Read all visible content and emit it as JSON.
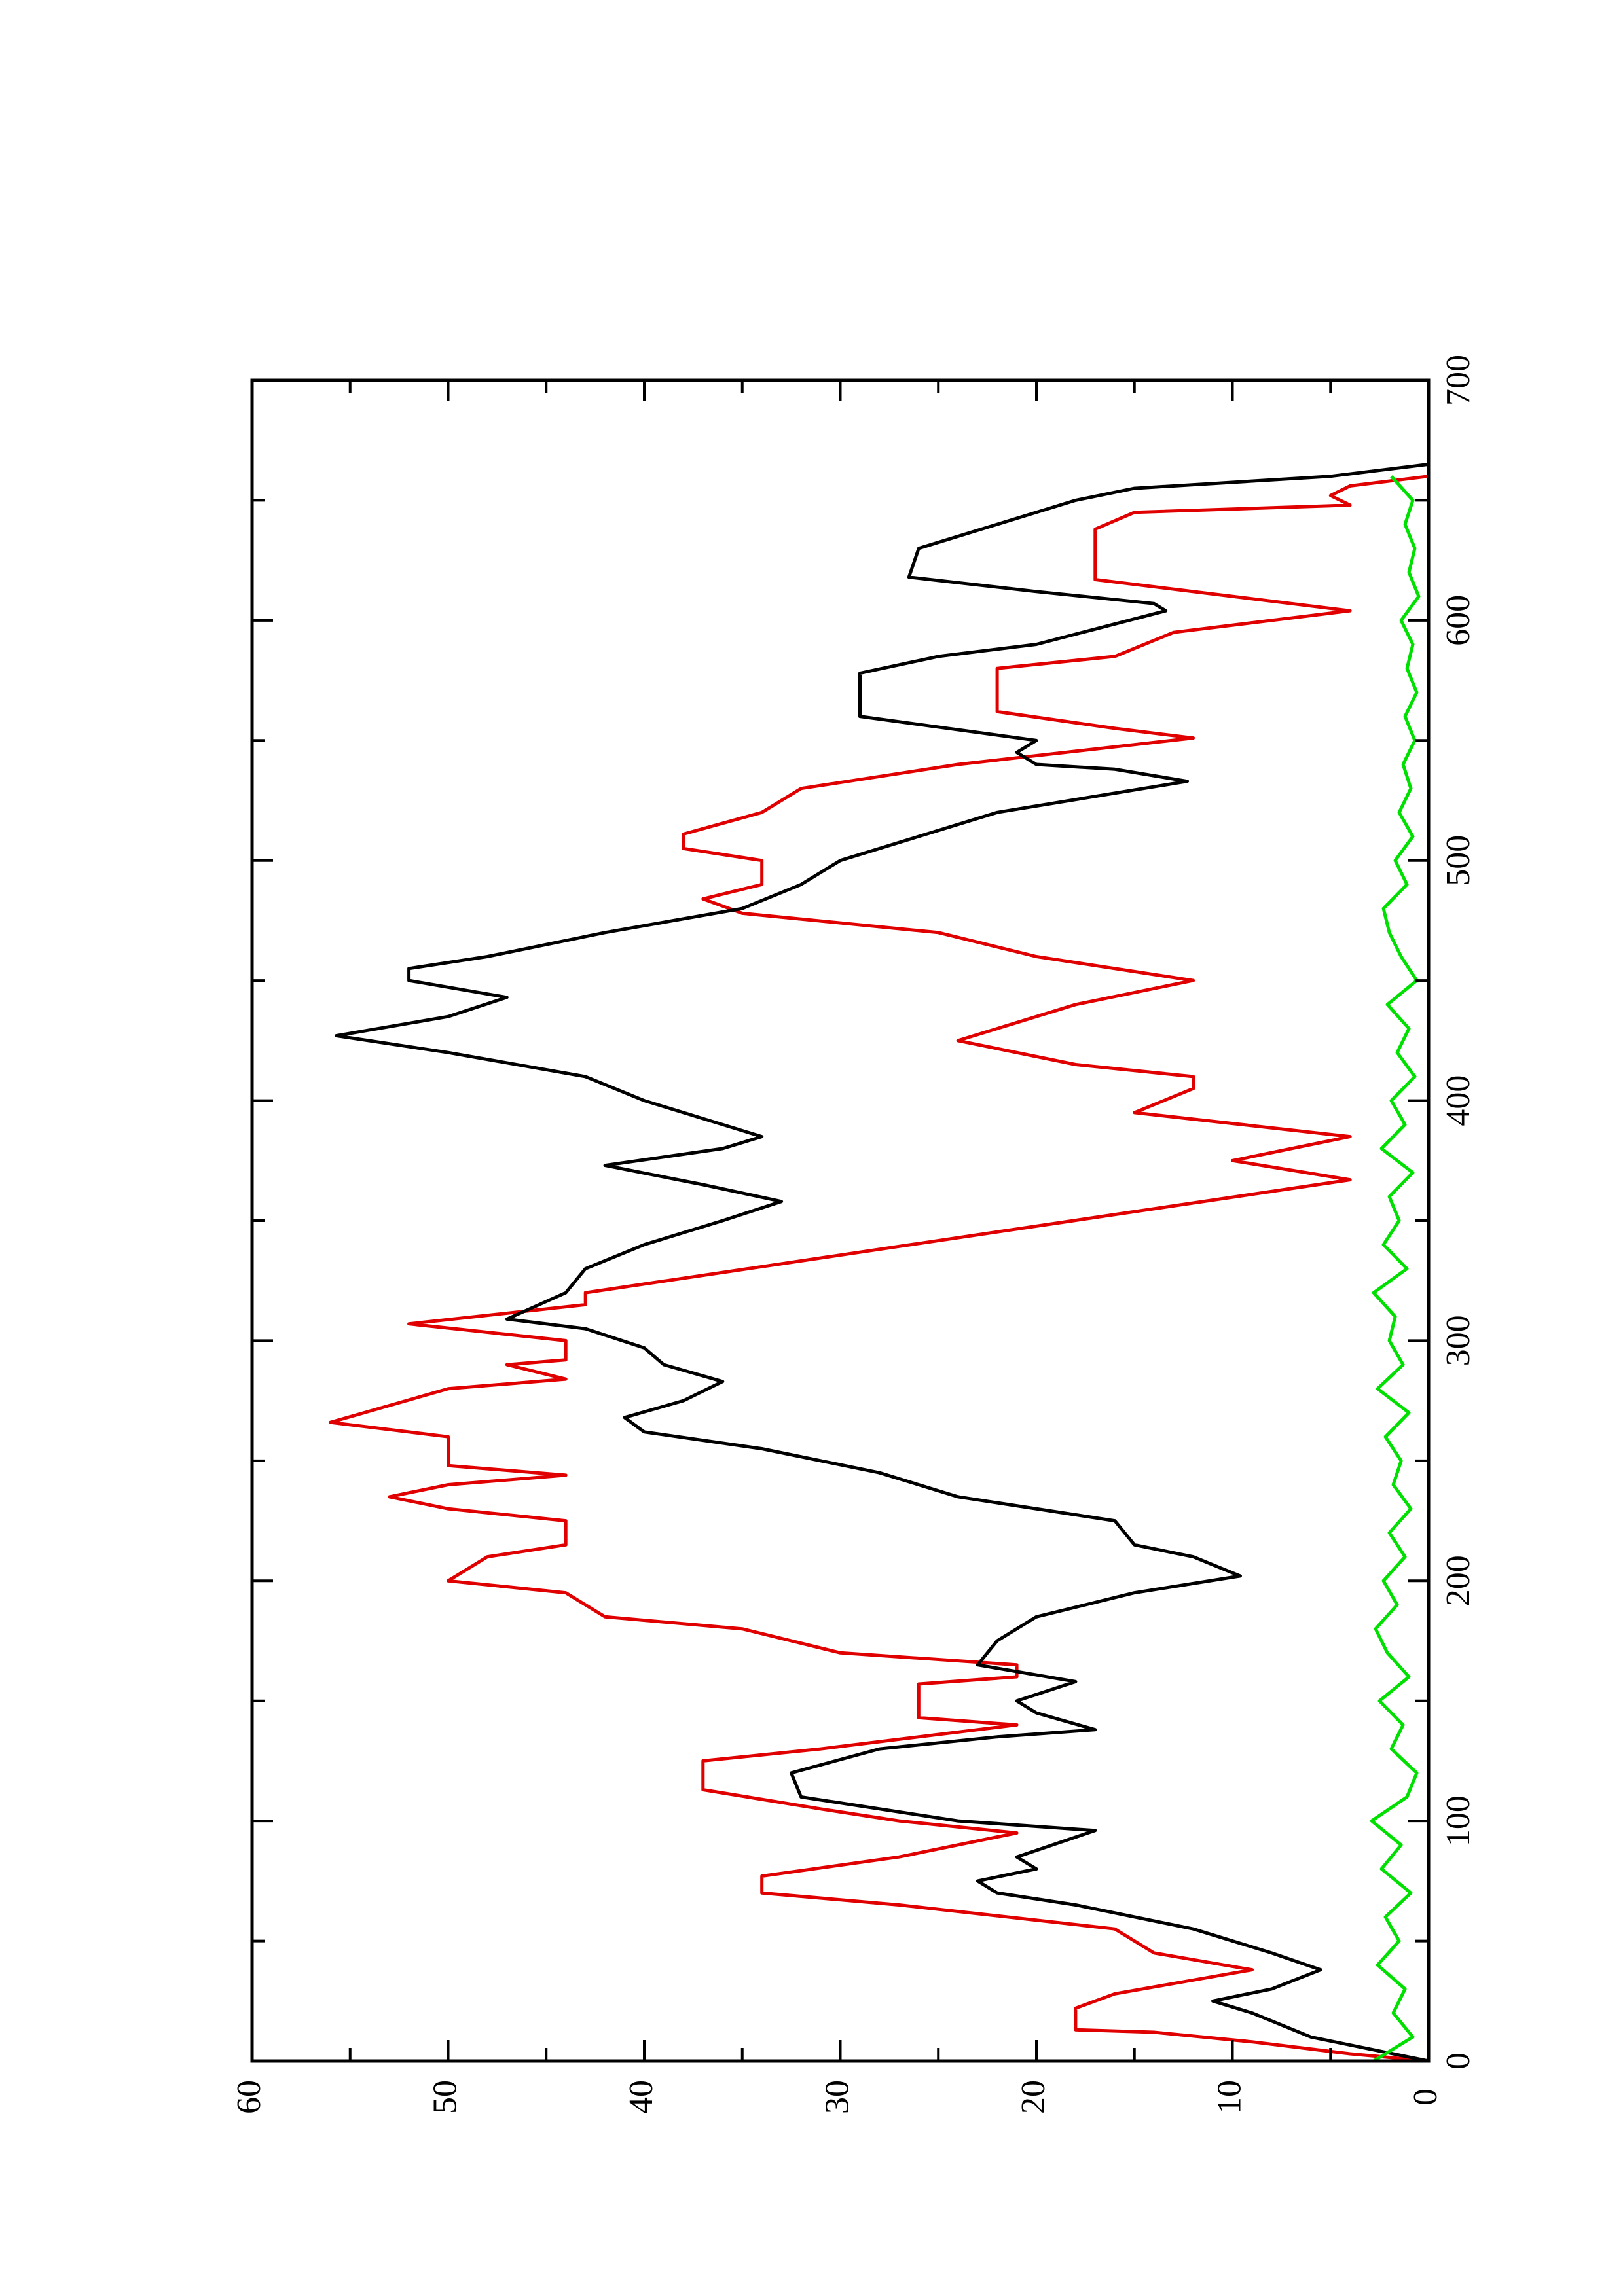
{
  "chart_data": {
    "type": "line",
    "xlim": [
      0,
      700
    ],
    "xticks": [
      0,
      100,
      200,
      300,
      400,
      500,
      600,
      700
    ],
    "xminorticks": [
      50,
      150,
      250,
      350,
      450,
      550,
      650
    ],
    "ylim": [
      0,
      60
    ],
    "yticks": [
      0,
      10,
      20,
      30,
      40,
      50,
      60
    ],
    "yminorticks": [
      5,
      15,
      25,
      35,
      45,
      55
    ],
    "series": [
      {
        "color": "#e00000",
        "x": [
          0,
          3,
          8,
          12,
          13,
          22,
          28,
          38,
          45,
          55,
          65,
          70,
          77,
          85,
          95,
          100,
          105,
          113,
          125,
          130,
          140,
          143,
          149,
          157,
          160,
          165,
          170,
          180,
          185,
          195,
          200,
          210,
          215,
          225,
          230,
          235,
          240,
          244,
          248,
          252,
          260,
          266,
          280,
          284,
          290,
          292,
          300,
          307,
          315,
          320,
          367,
          375,
          385,
          395,
          405,
          410,
          415,
          425,
          440,
          450,
          460,
          470,
          478,
          484,
          490,
          500,
          505,
          511,
          520,
          530,
          540,
          551,
          555,
          562,
          580,
          585,
          595,
          604,
          607,
          617,
          638,
          645,
          648,
          652,
          656,
          660
        ],
        "values": [
          0,
          4,
          9,
          14,
          18,
          18,
          16,
          9,
          14,
          16,
          27,
          34,
          34,
          27,
          21,
          27,
          31,
          37,
          37,
          31,
          21,
          26,
          26,
          26,
          21,
          21,
          30,
          35,
          42,
          44,
          50,
          48,
          44,
          44,
          50,
          53,
          50,
          44,
          50,
          50,
          50,
          56,
          50,
          44,
          47,
          44,
          44,
          52,
          43,
          43,
          4,
          10,
          4,
          15,
          12,
          12,
          18,
          24,
          18,
          12,
          20,
          25,
          35,
          37,
          34,
          34,
          38,
          38,
          34,
          32,
          24,
          12,
          16,
          22,
          22,
          16,
          13,
          4,
          7,
          17,
          17,
          15,
          4,
          5,
          4,
          0
        ]
      },
      {
        "color": "#000000",
        "x": [
          0,
          5,
          10,
          20,
          25,
          30,
          38,
          45,
          55,
          65,
          70,
          75,
          80,
          85,
          96,
          100,
          110,
          120,
          130,
          135,
          138,
          145,
          150,
          158,
          165,
          175,
          185,
          195,
          202,
          210,
          215,
          225,
          235,
          245,
          255,
          262,
          268,
          275,
          283,
          290,
          297,
          305,
          309,
          320,
          330,
          340,
          350,
          358,
          365,
          373,
          380,
          385,
          395,
          400,
          410,
          420,
          427,
          435,
          443,
          450,
          455,
          460,
          470,
          480,
          490,
          500,
          510,
          520,
          533,
          538,
          540,
          545,
          550,
          560,
          570,
          578,
          585,
          590,
          604,
          607,
          612,
          618,
          630,
          640,
          650,
          655,
          660,
          665
        ],
        "values": [
          0,
          3,
          6,
          9,
          11,
          8,
          5.5,
          8,
          12,
          18,
          22,
          23,
          20,
          21,
          17,
          24,
          32,
          32.5,
          28,
          22,
          17,
          20,
          21,
          18,
          23,
          22,
          20,
          15,
          9.6,
          12,
          15,
          16,
          24,
          28,
          34,
          40,
          41,
          38,
          36,
          39,
          40,
          43,
          47,
          44,
          43,
          40,
          36,
          33,
          37,
          42,
          36,
          34,
          38,
          40,
          43,
          50,
          55.7,
          50,
          47,
          52,
          52,
          48,
          42,
          35,
          32,
          30,
          26,
          22,
          12.3,
          16,
          20,
          21,
          20,
          29,
          29,
          29,
          25,
          20,
          13.4,
          14,
          20,
          26.5,
          26,
          22,
          18,
          15,
          5,
          0
        ]
      },
      {
        "color": "#00e000",
        "x": [
          0,
          10,
          20,
          30,
          40,
          50,
          60,
          70,
          80,
          90,
          100,
          110,
          120,
          130,
          140,
          150,
          160,
          170,
          180,
          190,
          200,
          210,
          220,
          230,
          240,
          250,
          260,
          270,
          280,
          290,
          300,
          310,
          320,
          330,
          340,
          350,
          360,
          370,
          380,
          390,
          400,
          410,
          420,
          430,
          440,
          450,
          460,
          470,
          480,
          490,
          500,
          510,
          520,
          530,
          540,
          550,
          560,
          570,
          580,
          590,
          600,
          610,
          620,
          630,
          640,
          650,
          660
        ],
        "values": [
          2.8,
          0.8,
          1.8,
          1.2,
          2.6,
          1.5,
          2.2,
          0.9,
          2.4,
          1.4,
          2.9,
          1.1,
          0.6,
          1.9,
          1.3,
          2.5,
          1.0,
          2.1,
          2.7,
          1.6,
          2.3,
          1.2,
          2.0,
          0.9,
          1.8,
          1.4,
          2.2,
          1.0,
          2.6,
          1.3,
          2.0,
          1.7,
          2.8,
          1.1,
          2.3,
          1.5,
          2.0,
          0.8,
          2.4,
          1.2,
          1.9,
          0.7,
          1.6,
          1.0,
          2.1,
          0.6,
          1.4,
          2.0,
          2.3,
          1.1,
          1.7,
          0.8,
          1.5,
          0.9,
          1.3,
          0.7,
          1.2,
          0.6,
          1.1,
          0.8,
          1.4,
          0.5,
          1.0,
          0.7,
          1.2,
          0.8,
          1.9
        ]
      }
    ]
  }
}
